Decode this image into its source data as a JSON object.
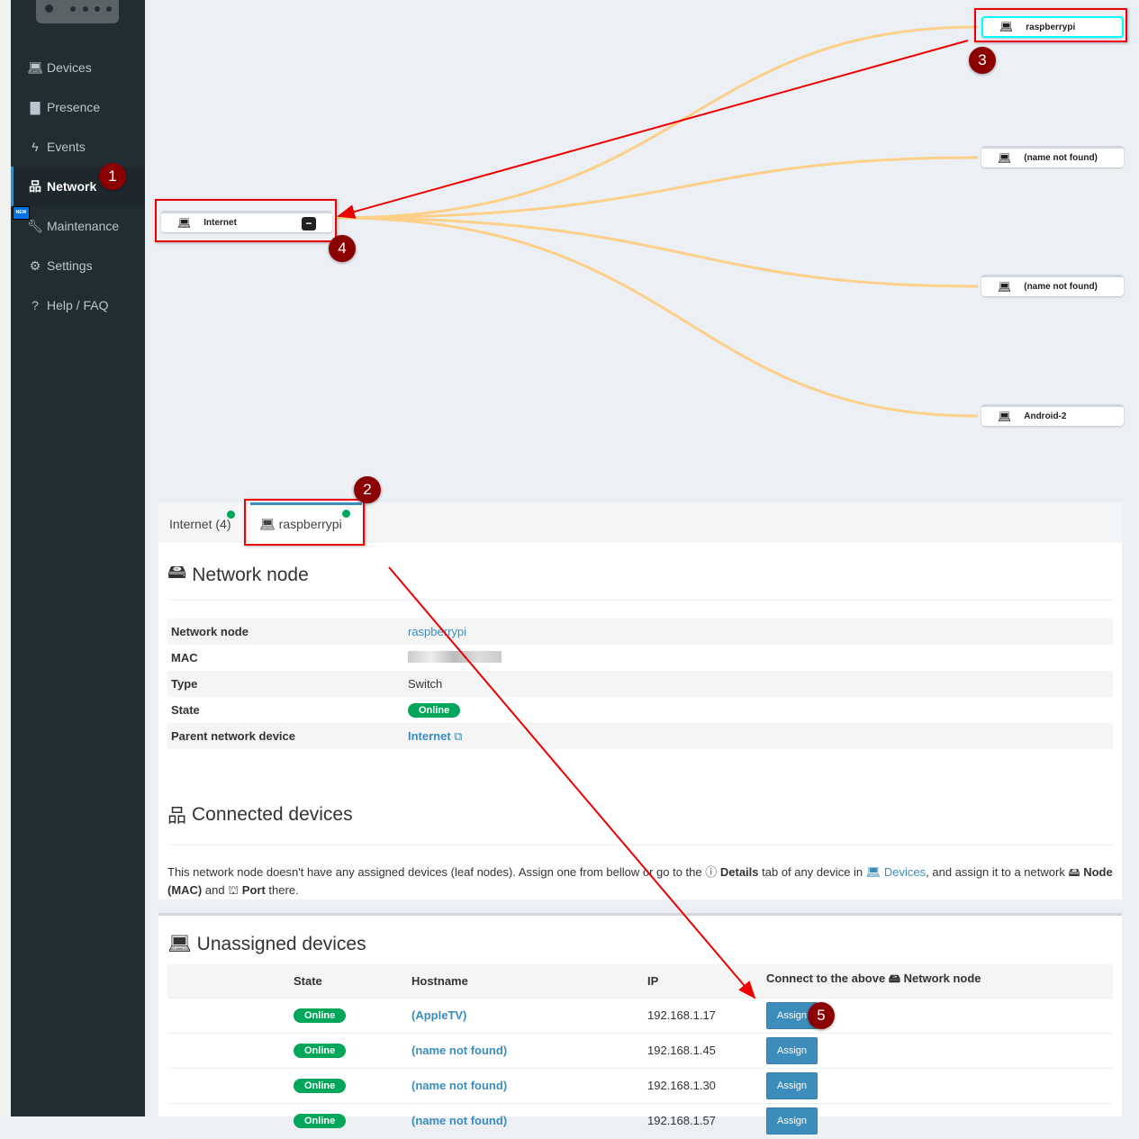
{
  "sidebar": {
    "items": [
      {
        "label": "Devices",
        "icon": "laptop-icon"
      },
      {
        "label": "Presence",
        "icon": "calendar-icon"
      },
      {
        "label": "Events",
        "icon": "bolt-icon"
      },
      {
        "label": "Network",
        "icon": "sitemap-icon",
        "active": true
      },
      {
        "label": "Maintenance",
        "icon": "wrench-icon",
        "badge": "NEW"
      },
      {
        "label": "Settings",
        "icon": "gear-icon"
      },
      {
        "label": "Help / FAQ",
        "icon": "question-icon"
      }
    ]
  },
  "graph": {
    "root": "Internet",
    "link_color": "#fdd08a",
    "nodes": [
      "raspberrypi",
      "(name not found)",
      "(name not found)",
      "Android-2"
    ]
  },
  "tabs": [
    {
      "label": "Internet (4)"
    },
    {
      "label": "raspberrypi",
      "active": true
    }
  ],
  "network_node": {
    "title": "Network node",
    "rows": [
      {
        "label": "Network node",
        "value": "raspberrypi"
      },
      {
        "label": "MAC",
        "value": ""
      },
      {
        "label": "Type",
        "value": "Switch"
      },
      {
        "label": "State",
        "value": "Online"
      },
      {
        "label": "Parent network device",
        "value": "Internet"
      }
    ]
  },
  "connected": {
    "title": "Connected devices",
    "text1": "This network node doesn't have any assigned devices (leaf nodes). Assign one from bellow or go to the",
    "details": "Details",
    "text2": "tab of any device in",
    "devices": "Devices",
    "text3": ", and assign it to a network",
    "node_mac": "Node (MAC)",
    "and": "and",
    "port": "Port",
    "there": "there."
  },
  "unassigned": {
    "title": "Unassigned devices",
    "headers": [
      "State",
      "Hostname",
      "IP",
      "Connect to the above",
      "Network node"
    ],
    "rows": [
      {
        "state": "Online",
        "hostname": "(AppleTV)",
        "ip": "192.168.1.17",
        "action": "Assign"
      },
      {
        "state": "Online",
        "hostname": "(name not found)",
        "ip": "192.168.1.45",
        "action": "Assign"
      },
      {
        "state": "Online",
        "hostname": "(name not found)",
        "ip": "192.168.1.30",
        "action": "Assign"
      },
      {
        "state": "Online",
        "hostname": "(name not found)",
        "ip": "192.168.1.57",
        "action": "Assign"
      }
    ]
  },
  "annotations": [
    "1",
    "2",
    "3",
    "4",
    "5"
  ]
}
